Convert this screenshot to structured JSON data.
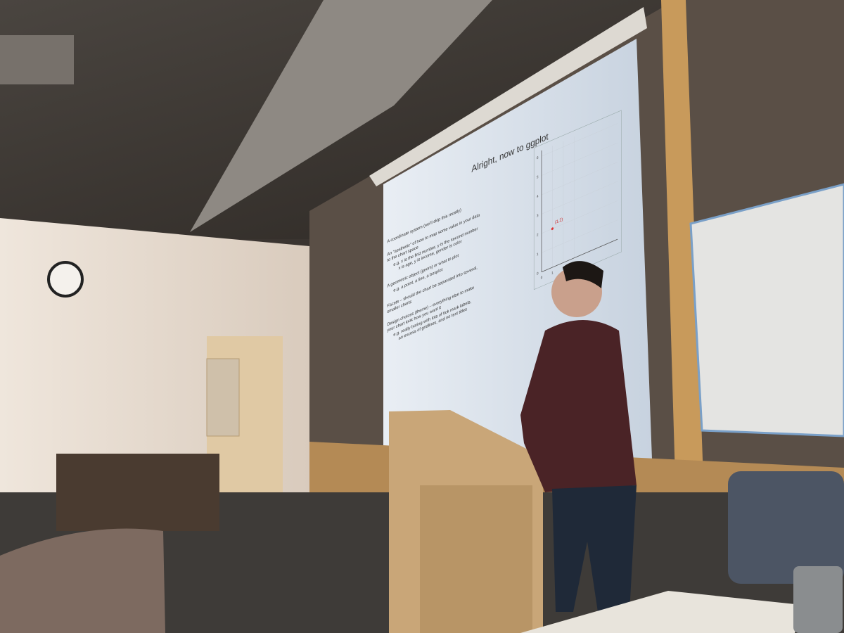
{
  "slide": {
    "title": "Alright, now to ggplot",
    "lines": [
      "A coordinate system (we'll skip this mostly)",
      "An “aesthetic” of how to map some value in your data",
      "to the chart space",
      "e.g. x is the first number, y is the second number",
      "x is age, y is income, gender is color",
      "A geometric object (geom) or what to plot",
      "e.g. a point, a line, a boxplot",
      "Facets – should the chart be separated into several,",
      "smaller charts",
      "Design choices (theme) – everything else to make",
      "your chart look how you want it",
      "e.g. really boring with lots of tick mark labels,",
      "an excess of gridlines, and no text titles"
    ],
    "plot": {
      "xlim": [
        0,
        7
      ],
      "ylim": [
        0,
        6.3
      ],
      "xticks": [
        0,
        1,
        2,
        3
      ],
      "yticks": [
        0,
        1,
        2,
        3,
        4,
        5,
        6
      ],
      "point": {
        "x": 1,
        "y": 2,
        "label": "(1,2)"
      }
    }
  }
}
